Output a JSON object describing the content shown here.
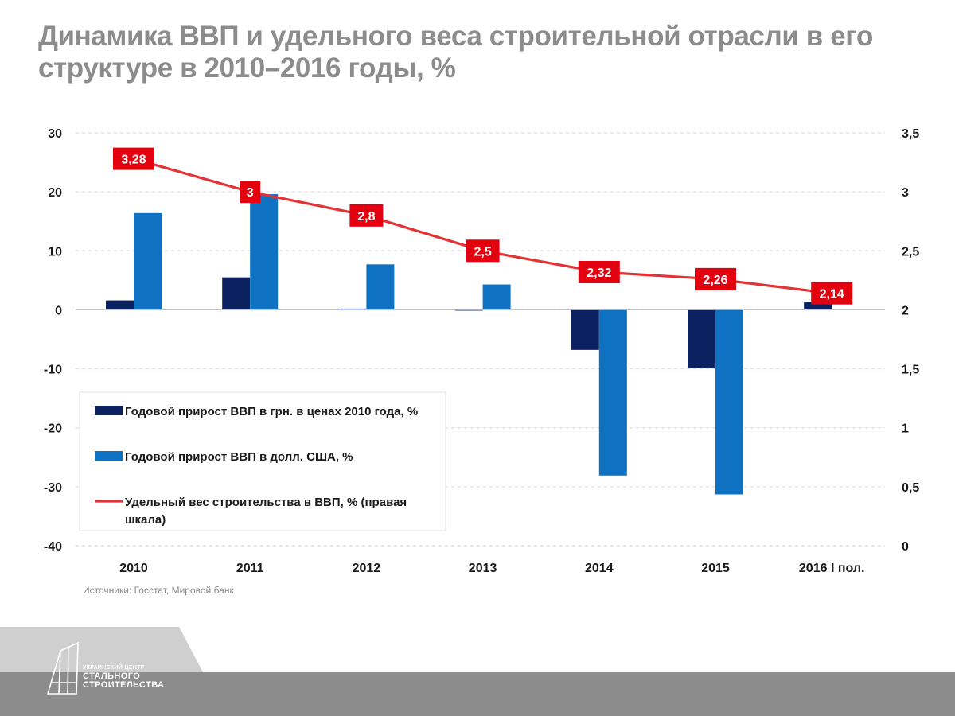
{
  "chart_data": {
    "type": "bar",
    "title": "Динамика ВВП и удельного веса строительной отрасли в его структуре в 2010–2016 годы, %",
    "categories": [
      "2010",
      "2011",
      "2012",
      "2013",
      "2014",
      "2015",
      "2016 I пол."
    ],
    "y_left": {
      "min": -40,
      "max": 30,
      "ticks": [
        "30",
        "20",
        "10",
        "0",
        "-10",
        "-20",
        "-30",
        "-40"
      ]
    },
    "y_right": {
      "min": 0,
      "max": 3.5,
      "ticks": [
        "3,5",
        "3",
        "2,5",
        "2",
        "1,5",
        "1",
        "0,5",
        "0"
      ]
    },
    "series": [
      {
        "name": "Годовой прирост  ВВП в грн. в ценах 2010 года, %",
        "kind": "bar",
        "axis": "left",
        "color": "#0b2160",
        "values": [
          1.6,
          5.5,
          0.2,
          0.0,
          -6.8,
          -9.9,
          1.4
        ]
      },
      {
        "name": "Годовой прирост ВВП в долл. США, %",
        "kind": "bar",
        "axis": "left",
        "color": "#0f71c2",
        "values": [
          16.4,
          19.6,
          7.7,
          4.3,
          -28.1,
          -31.3,
          null
        ]
      },
      {
        "name": "Удельный вес строительства в ВВП, % (правая шкала)",
        "kind": "line",
        "axis": "right",
        "color": "#e53234",
        "values": [
          3.28,
          3.0,
          2.8,
          2.5,
          2.32,
          2.26,
          2.14
        ],
        "labels": [
          "3,28",
          "3",
          "2,8",
          "2,5",
          "2,32",
          "2,26",
          "2,14"
        ]
      }
    ],
    "grid": "horizontal-dashed",
    "legend_position": "bottom-left",
    "label_color": "#e3000f"
  },
  "source": "Источники: Госстат, Мировой банк",
  "footer": {
    "logo_line1": "УКРАИНСКИЙ ЦЕНТР",
    "logo_line2": "СТАЛЬНОГО",
    "logo_line3": "СТРОИТЕЛЬСТВА",
    "band_color": "#8c8c8c",
    "tab_color": "#cfcfcf"
  }
}
